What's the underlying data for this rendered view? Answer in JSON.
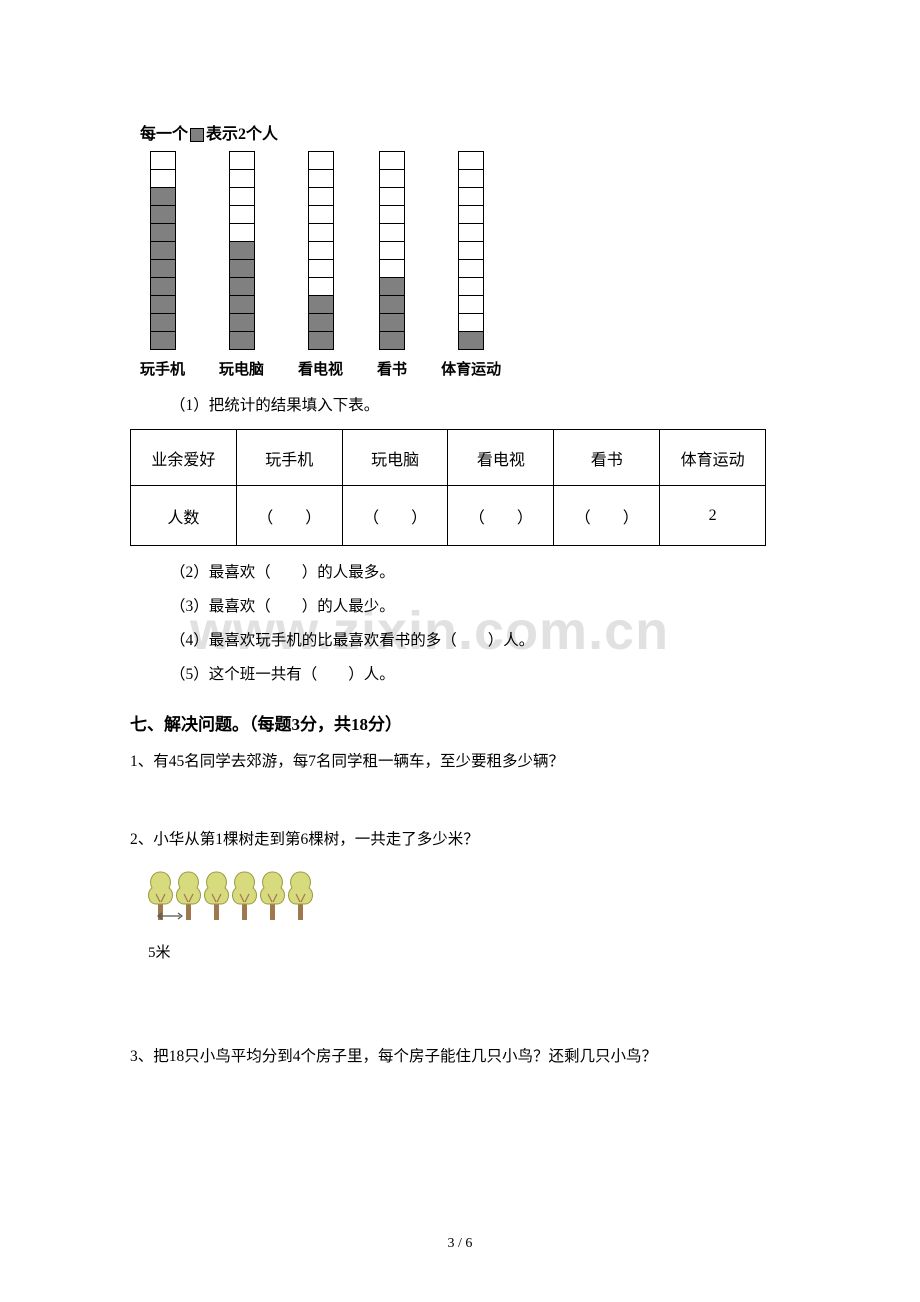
{
  "chart": {
    "title_prefix": "每一个",
    "title_suffix": "表示2个人",
    "total_cells": 11,
    "bars": [
      {
        "label": "玩手机",
        "filled": 9
      },
      {
        "label": "玩电脑",
        "filled": 6
      },
      {
        "label": "看电视",
        "filled": 3
      },
      {
        "label": "看书",
        "filled": 4
      },
      {
        "label": "体育运动",
        "filled": 1
      }
    ],
    "bar_fill_color": "#808080",
    "bar_border_color": "#000000",
    "label_fontweight": "bold"
  },
  "q1": {
    "prompt": "（1）把统计的结果填入下表。",
    "row1": [
      "业余爱好",
      "玩手机",
      "玩电脑",
      "看电视",
      "看书",
      "体育运动"
    ],
    "row2_label": "人数",
    "row2_blank": "（　　）",
    "row2_last": "2"
  },
  "q2": "（2）最喜欢（　　）的人最多。",
  "q3": "（3）最喜欢（　　）的人最少。",
  "q4": "（4）最喜欢玩手机的比最喜欢看书的多（　　）人。",
  "q5": "（5）这个班一共有（　　）人。",
  "section7": "七、解决问题。（每题3分，共18分）",
  "p1": "1、有45名同学去郊游，每7名同学租一辆车，至少要租多少辆？",
  "p2": "2、小华从第1棵树走到第6棵树，一共走了多少米？",
  "p2_dist": "5米",
  "p3": "3、把18只小鸟平均分到4个房子里，每个房子能住几只小鸟？还剩几只小鸟？",
  "trees": {
    "count": 6,
    "crown_fill": "#d8da7e",
    "crown_stroke": "#9a9a40",
    "trunk_fill": "#a07850"
  },
  "watermark": "www.zixin.com.cn",
  "page_number": "3 / 6",
  "colors": {
    "text": "#000000",
    "bg": "#ffffff",
    "watermark": "rgba(200,200,200,0.55)"
  }
}
